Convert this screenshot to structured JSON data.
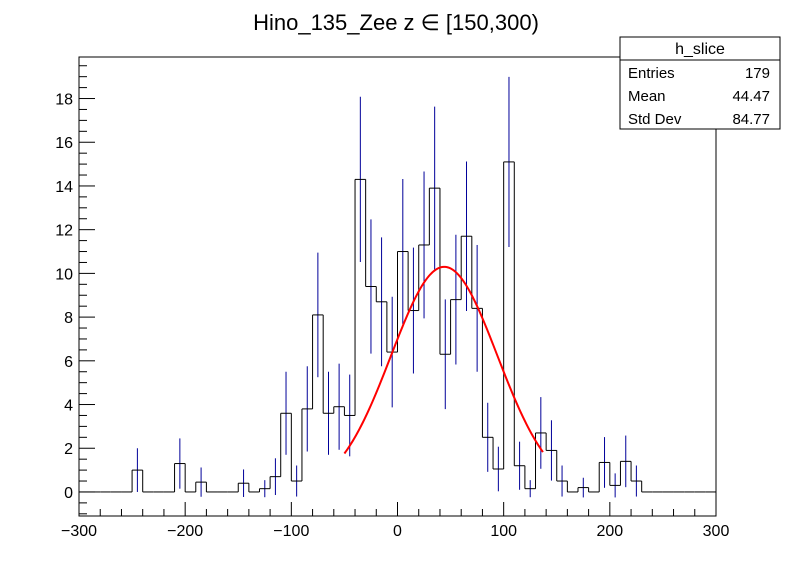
{
  "chart_data": {
    "type": "histogram",
    "title": "Hino_135_Zee z  ∈ [150,300)",
    "xlabel": "",
    "ylabel": "",
    "xlim": [
      -300,
      300
    ],
    "ylim": [
      -1.1,
      19.9
    ],
    "x_ticks": [
      -300,
      -200,
      -100,
      0,
      100,
      200,
      300
    ],
    "x_tick_labels": [
      "−300",
      "−200",
      "−100",
      "0",
      "100",
      "200",
      "300"
    ],
    "y_ticks": [
      0,
      2,
      4,
      6,
      8,
      10,
      12,
      14,
      16,
      18
    ],
    "bin_edges": [
      -300,
      -290,
      -280,
      -270,
      -260,
      -250,
      -240,
      -230,
      -220,
      -210,
      -200,
      -190,
      -180,
      -170,
      -160,
      -150,
      -140,
      -130,
      -120,
      -110,
      -100,
      -90,
      -80,
      -70,
      -60,
      -50,
      -40,
      -30,
      -20,
      -10,
      0,
      10,
      20,
      30,
      40,
      50,
      60,
      70,
      80,
      90,
      100,
      110,
      120,
      130,
      140,
      150,
      160,
      170,
      180,
      190,
      200,
      210,
      220,
      230,
      240,
      250,
      260,
      270,
      280,
      290,
      300
    ],
    "values": [
      0,
      0,
      0,
      0,
      0,
      1.0,
      0,
      0,
      0,
      1.3,
      0,
      0.45,
      0,
      0,
      0,
      0.4,
      0,
      0.15,
      0.7,
      3.6,
      0.5,
      3.8,
      8.1,
      3.6,
      3.9,
      3.5,
      14.3,
      9.4,
      8.7,
      6.4,
      11.0,
      8.3,
      11.3,
      13.9,
      6.3,
      8.8,
      11.7,
      8.4,
      2.5,
      1.05,
      15.1,
      1.2,
      0.15,
      2.7,
      1.9,
      0.5,
      0,
      0.2,
      0,
      1.35,
      0.3,
      1.4,
      0.5,
      0,
      0,
      0,
      0,
      0,
      0,
      0
    ],
    "errors": [
      0,
      0,
      0,
      0,
      0,
      1.0,
      0,
      0,
      0,
      1.15,
      0,
      0.67,
      0,
      0,
      0,
      0.63,
      0,
      0.39,
      0.84,
      1.9,
      0.71,
      1.95,
      2.85,
      1.9,
      1.97,
      1.87,
      3.78,
      3.07,
      2.95,
      2.53,
      3.32,
      2.88,
      3.36,
      3.73,
      2.51,
      2.97,
      3.42,
      2.9,
      1.58,
      1.02,
      3.89,
      1.1,
      0.39,
      1.64,
      1.38,
      0.71,
      0,
      0.45,
      0,
      1.16,
      0.55,
      1.18,
      0.71,
      0,
      0,
      0,
      0,
      0,
      0,
      0
    ],
    "series": [
      {
        "name": "h_slice",
        "style": "step",
        "color": "#000000"
      }
    ],
    "fit": {
      "type": "gaussian",
      "color": "#ff0000",
      "amplitude": 10.3,
      "mean": 44,
      "sigma": 50,
      "range": [
        -50,
        137
      ]
    },
    "grid": false,
    "legend": "top-right"
  },
  "stats": {
    "title": "h_slice",
    "rows": [
      {
        "label": "Entries",
        "value": "179"
      },
      {
        "label": "Mean",
        "value": "44.47"
      },
      {
        "label": "Std Dev",
        "value": "84.77"
      }
    ]
  },
  "colors": {
    "histogram": "#000000",
    "error_bars": "#000099",
    "fit": "#ff0000",
    "frame": "#000000"
  }
}
